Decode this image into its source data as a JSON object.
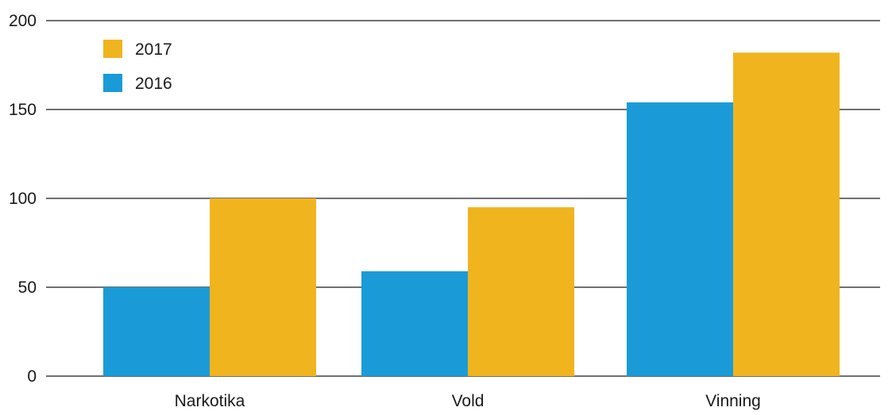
{
  "chart_data": {
    "type": "bar",
    "categories": [
      "Narkotika",
      "Vold",
      "Vinning"
    ],
    "series": [
      {
        "name": "2016",
        "color": "#1a9bd7",
        "values": [
          50,
          59,
          154
        ]
      },
      {
        "name": "2017",
        "color": "#f0b41e",
        "values": [
          100,
          95,
          182
        ]
      }
    ],
    "ylim": [
      0,
      200
    ],
    "yticks": [
      0,
      50,
      100,
      150,
      200
    ],
    "grid": true,
    "legend_position": "top-left",
    "legend_order": [
      "2017",
      "2016"
    ]
  }
}
